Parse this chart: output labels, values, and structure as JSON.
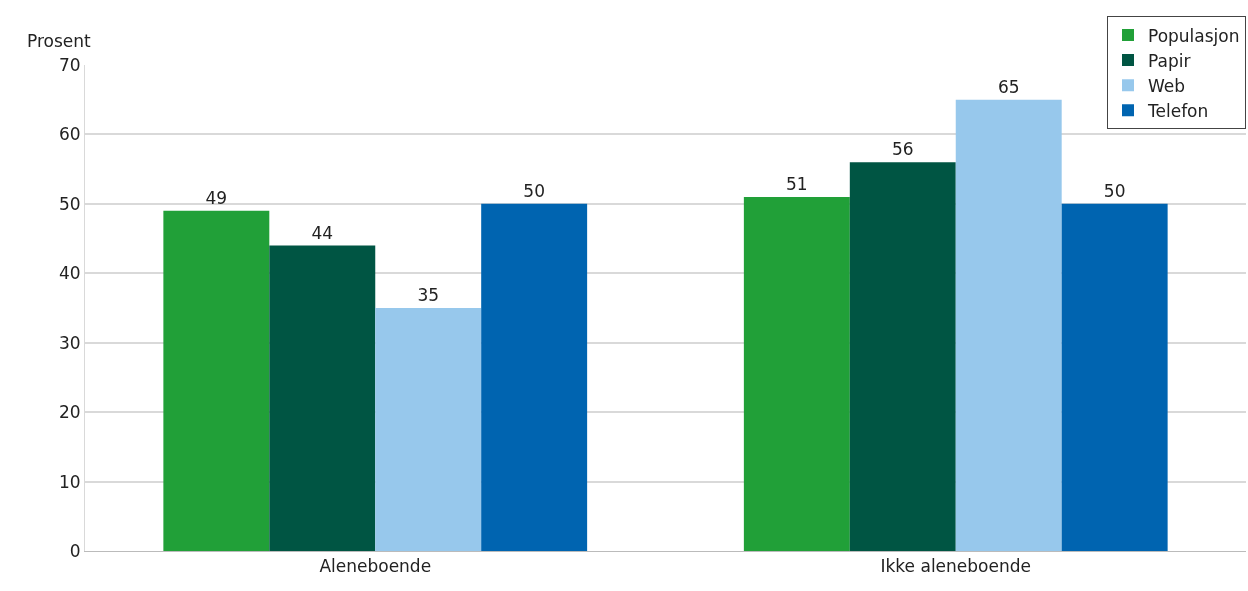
{
  "chart_data": {
    "type": "bar",
    "ylabel": "Prosent",
    "categories": [
      "Aleneboende",
      "Ikke aleneboende"
    ],
    "series": [
      {
        "name": "Populasjon",
        "color": "#21a038",
        "values": [
          49,
          51
        ]
      },
      {
        "name": "Papir",
        "color": "#005543",
        "values": [
          44,
          56
        ]
      },
      {
        "name": "Web",
        "color": "#97c8ec",
        "values": [
          35,
          65
        ]
      },
      {
        "name": "Telefon",
        "color": "#0064b0",
        "values": [
          50,
          50
        ]
      }
    ],
    "ylim": [
      0,
      70
    ],
    "yticks": [
      0,
      10,
      20,
      30,
      40,
      50,
      60,
      70
    ],
    "grid": "y",
    "legend": "top right",
    "data_labels": true
  }
}
